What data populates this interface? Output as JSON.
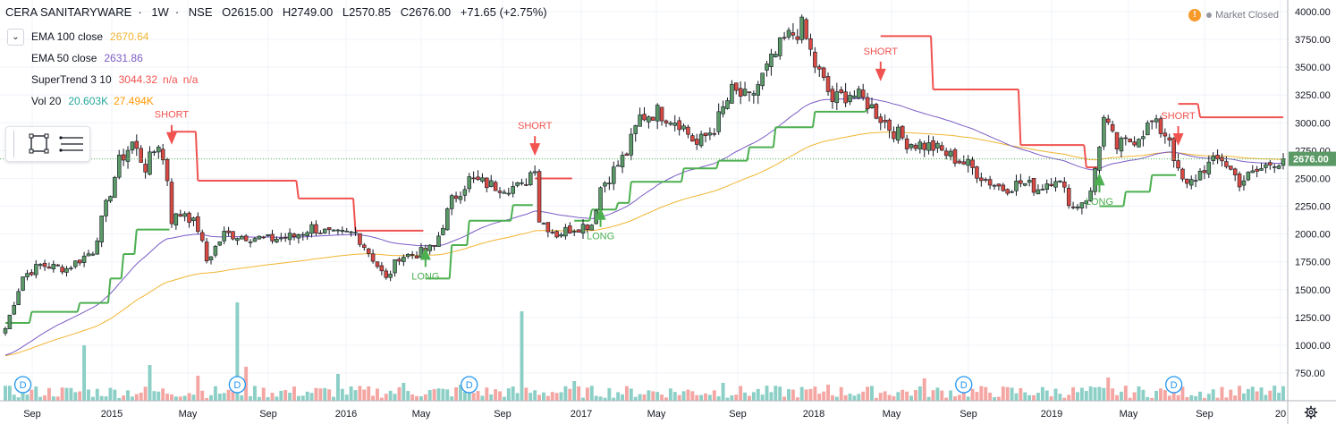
{
  "header": {
    "symbol": "CERA SANITARYWARE",
    "interval": "1W",
    "exchange": "NSE",
    "open": "O2615.00",
    "high": "H2749.00",
    "low": "L2570.85",
    "close": "C2676.00",
    "change": "+71.65 (+2.75%)"
  },
  "indicators": [
    {
      "name": "EMA 100 close",
      "values": [
        "2670.64"
      ],
      "colors": [
        "#f2b533"
      ]
    },
    {
      "name": "EMA 50 close",
      "values": [
        "2631.86"
      ],
      "colors": [
        "#7b5cc4"
      ]
    },
    {
      "name": "SuperTrend 3 10",
      "values": [
        "3044.32",
        "n/a",
        "n/a"
      ],
      "colors": [
        "#f05350",
        "#f05350",
        "#f05350"
      ]
    },
    {
      "name": "Vol 20",
      "values": [
        "20.603K",
        "27.494K"
      ],
      "colors": [
        "#26a69a",
        "#ff9800"
      ]
    }
  ],
  "status": {
    "market": "Market Closed"
  },
  "price_label": "2676.00",
  "colors": {
    "up": "#5b9a66",
    "down": "#d94a42",
    "supertrend_up": "#4caf50",
    "supertrend_down": "#f05350",
    "ema100": "#f2b533",
    "ema50": "#7b5cc4",
    "vol_up": "#8ccfc6",
    "vol_down": "#f4a6a3"
  },
  "chart_data": {
    "type": "candlestick",
    "yaxis": {
      "ticks": [
        "4000.00",
        "3750.00",
        "3500.00",
        "3250.00",
        "3000.00",
        "2750.00",
        "2500.00",
        "2250.00",
        "2000.00",
        "1750.00",
        "1500.00",
        "1250.00",
        "1000.00",
        "750.00"
      ],
      "range": [
        640,
        4000
      ]
    },
    "xaxis": {
      "ticks": [
        "Sep",
        "2015",
        "May",
        "Sep",
        "2016",
        "May",
        "Sep",
        "2017",
        "May",
        "Sep",
        "2018",
        "May",
        "Sep",
        "2019",
        "May",
        "Sep",
        "20"
      ]
    },
    "price_anchors": [
      [
        0,
        1150
      ],
      [
        4,
        1620
      ],
      [
        8,
        1720
      ],
      [
        14,
        1690
      ],
      [
        20,
        1850
      ],
      [
        26,
        2650
      ],
      [
        29,
        2820
      ],
      [
        32,
        2600
      ],
      [
        35,
        2820
      ],
      [
        37,
        2500
      ],
      [
        38,
        2130
      ],
      [
        41,
        2200
      ],
      [
        44,
        2050
      ],
      [
        46,
        1760
      ],
      [
        50,
        2000
      ],
      [
        55,
        1980
      ],
      [
        60,
        1950
      ],
      [
        66,
        1980
      ],
      [
        70,
        2060
      ],
      [
        75,
        1990
      ],
      [
        80,
        2010
      ],
      [
        84,
        1780
      ],
      [
        87,
        1590
      ],
      [
        90,
        1800
      ],
      [
        94,
        1820
      ],
      [
        98,
        1880
      ],
      [
        102,
        2300
      ],
      [
        106,
        2490
      ],
      [
        112,
        2430
      ],
      [
        118,
        2420
      ],
      [
        121,
        2620
      ],
      [
        122,
        2130
      ],
      [
        126,
        2000
      ],
      [
        130,
        2060
      ],
      [
        134,
        2090
      ],
      [
        136,
        2420
      ],
      [
        139,
        2570
      ],
      [
        142,
        2730
      ],
      [
        145,
        3050
      ],
      [
        149,
        3100
      ],
      [
        154,
        3010
      ],
      [
        158,
        2800
      ],
      [
        162,
        2960
      ],
      [
        166,
        3280
      ],
      [
        170,
        3210
      ],
      [
        174,
        3480
      ],
      [
        178,
        3740
      ],
      [
        182,
        3860
      ],
      [
        185,
        3520
      ],
      [
        189,
        3200
      ],
      [
        193,
        3270
      ],
      [
        197,
        3180
      ],
      [
        202,
        2960
      ],
      [
        206,
        2830
      ],
      [
        212,
        2780
      ],
      [
        216,
        2700
      ],
      [
        220,
        2620
      ],
      [
        224,
        2490
      ],
      [
        228,
        2410
      ],
      [
        232,
        2460
      ],
      [
        236,
        2410
      ],
      [
        240,
        2520
      ],
      [
        244,
        2240
      ],
      [
        248,
        2360
      ],
      [
        250,
        2820
      ],
      [
        251,
        3030
      ],
      [
        254,
        2780
      ],
      [
        258,
        2860
      ],
      [
        262,
        3000
      ],
      [
        266,
        2870
      ],
      [
        268,
        2540
      ],
      [
        270,
        2420
      ],
      [
        274,
        2600
      ],
      [
        278,
        2680
      ],
      [
        282,
        2470
      ],
      [
        286,
        2560
      ],
      [
        290,
        2660
      ]
    ],
    "supertrend_steps": [
      [
        0,
        1200,
        "up"
      ],
      [
        6,
        1300,
        "up"
      ],
      [
        17,
        1380,
        "up"
      ],
      [
        24,
        1600,
        "up"
      ],
      [
        27,
        1820,
        "up"
      ],
      [
        30,
        2040,
        "up"
      ],
      [
        38,
        2920,
        "down"
      ],
      [
        44,
        2480,
        "down"
      ],
      [
        67,
        2320,
        "down"
      ],
      [
        80,
        2030,
        "down"
      ],
      [
        96,
        1600,
        "up"
      ],
      [
        102,
        1900,
        "up"
      ],
      [
        106,
        2120,
        "up"
      ],
      [
        116,
        2260,
        "up"
      ],
      [
        121,
        2500,
        "down"
      ],
      [
        130,
        2120,
        "up"
      ],
      [
        134,
        2220,
        "up"
      ],
      [
        140,
        2280,
        "up"
      ],
      [
        143,
        2470,
        "up"
      ],
      [
        155,
        2590,
        "up"
      ],
      [
        163,
        2660,
        "up"
      ],
      [
        170,
        2780,
        "up"
      ],
      [
        176,
        2960,
        "up"
      ],
      [
        185,
        3100,
        "up"
      ],
      [
        197,
        3140,
        "up"
      ],
      [
        200,
        3780,
        "down"
      ],
      [
        212,
        3300,
        "down"
      ],
      [
        232,
        2800,
        "down"
      ],
      [
        247,
        2600,
        "down"
      ],
      [
        250,
        2250,
        "up"
      ],
      [
        256,
        2380,
        "up"
      ],
      [
        262,
        2530,
        "up"
      ],
      [
        268,
        3170,
        "down"
      ],
      [
        273,
        3050,
        "down"
      ],
      [
        292,
        3050,
        "down"
      ]
    ],
    "signals": [
      {
        "type": "SHORT",
        "bar": 38,
        "price": 2900
      },
      {
        "type": "SHORT",
        "bar": 121,
        "price": 2800
      },
      {
        "type": "LONG",
        "bar": 96,
        "price": 1800
      },
      {
        "type": "LONG",
        "bar": 136,
        "price": 2160
      },
      {
        "type": "SHORT",
        "bar": 200,
        "price": 3470
      },
      {
        "type": "LONG",
        "bar": 250,
        "price": 2470
      },
      {
        "type": "SHORT",
        "bar": 268,
        "price": 2890
      }
    ],
    "dividend_marks": [
      {
        "label": "D",
        "bar": 4
      },
      {
        "label": "D",
        "bar": 53
      },
      {
        "label": "D",
        "bar": 106
      },
      {
        "label": "D",
        "bar": 219
      },
      {
        "label": "D",
        "bar": 267
      }
    ],
    "last_price": 2676
  }
}
